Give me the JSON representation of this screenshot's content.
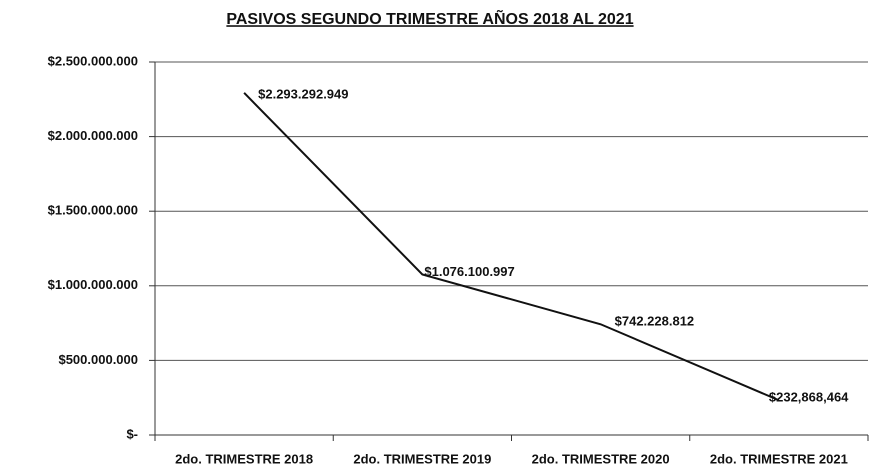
{
  "chart_data": {
    "type": "line",
    "title": "PASIVOS SEGUNDO TRIMESTRE  AÑOS 2018 AL 2021",
    "categories": [
      "2do. TRIMESTRE 2018",
      "2do. TRIMESTRE 2019",
      "2do. TRIMESTRE 2020",
      "2do. TRIMESTRE 2021"
    ],
    "series": [
      {
        "name": "Pasivos",
        "color": "#111111",
        "values": [
          2293292949,
          1076100997,
          742228812,
          232868464
        ],
        "value_labels": [
          "$2.293.292.949",
          "$1.076.100.997",
          "$742.228.812",
          "$232,868,464"
        ]
      }
    ],
    "ylim": [
      0,
      2500000000
    ],
    "yticks": [
      {
        "value": 0,
        "label": "$-"
      },
      {
        "value": 500000000,
        "label": "$500.000.000"
      },
      {
        "value": 1000000000,
        "label": "$1.000.000.000"
      },
      {
        "value": 1500000000,
        "label": "$1.500.000.000"
      },
      {
        "value": 2000000000,
        "label": "$2.000.000.000"
      },
      {
        "value": 2500000000,
        "label": "$2.500.000.000"
      }
    ],
    "grid": true
  }
}
